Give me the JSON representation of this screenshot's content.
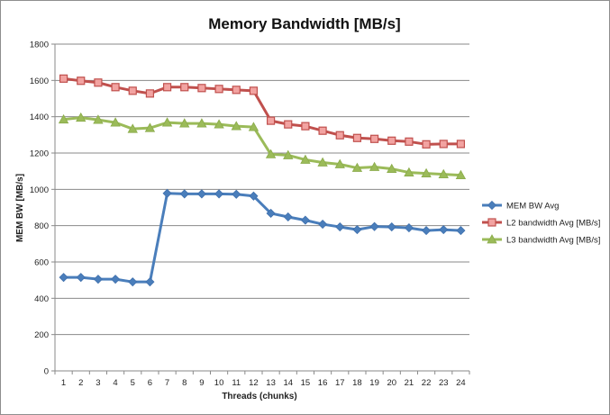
{
  "chart_data": {
    "type": "line",
    "title": "Memory Bandwidth [MB/s]",
    "xlabel": "Threads (chunks)",
    "ylabel": "MEM BW [MB/s]",
    "x": [
      1,
      2,
      3,
      4,
      5,
      6,
      7,
      8,
      9,
      10,
      11,
      12,
      13,
      14,
      15,
      16,
      17,
      18,
      19,
      20,
      21,
      22,
      23,
      24
    ],
    "ylim": [
      0,
      1800
    ],
    "yticks": [
      0,
      200,
      400,
      600,
      800,
      1000,
      1200,
      1400,
      1600,
      1800
    ],
    "grid": true,
    "legend_position": "right",
    "series": [
      {
        "name": "MEM BW Avg",
        "color": "#4a7ebb",
        "marker": "diamond",
        "values": [
          515,
          515,
          505,
          505,
          490,
          490,
          978,
          975,
          975,
          975,
          973,
          963,
          868,
          848,
          830,
          808,
          793,
          778,
          795,
          793,
          788,
          773,
          778,
          773
        ]
      },
      {
        "name": "L2 bandwidth Avg [MB/s]",
        "color": "#c0504d",
        "marker": "square",
        "values": [
          1610,
          1598,
          1588,
          1563,
          1543,
          1528,
          1563,
          1563,
          1558,
          1553,
          1548,
          1543,
          1378,
          1358,
          1348,
          1323,
          1298,
          1283,
          1278,
          1268,
          1263,
          1248,
          1250,
          1250
        ]
      },
      {
        "name": "L3 bandwidth Avg [MB/s]",
        "color": "#9bbb59",
        "marker": "triangle",
        "values": [
          1385,
          1395,
          1383,
          1368,
          1333,
          1338,
          1368,
          1363,
          1363,
          1358,
          1348,
          1343,
          1193,
          1188,
          1163,
          1148,
          1138,
          1118,
          1123,
          1113,
          1093,
          1088,
          1083,
          1078
        ]
      }
    ]
  }
}
